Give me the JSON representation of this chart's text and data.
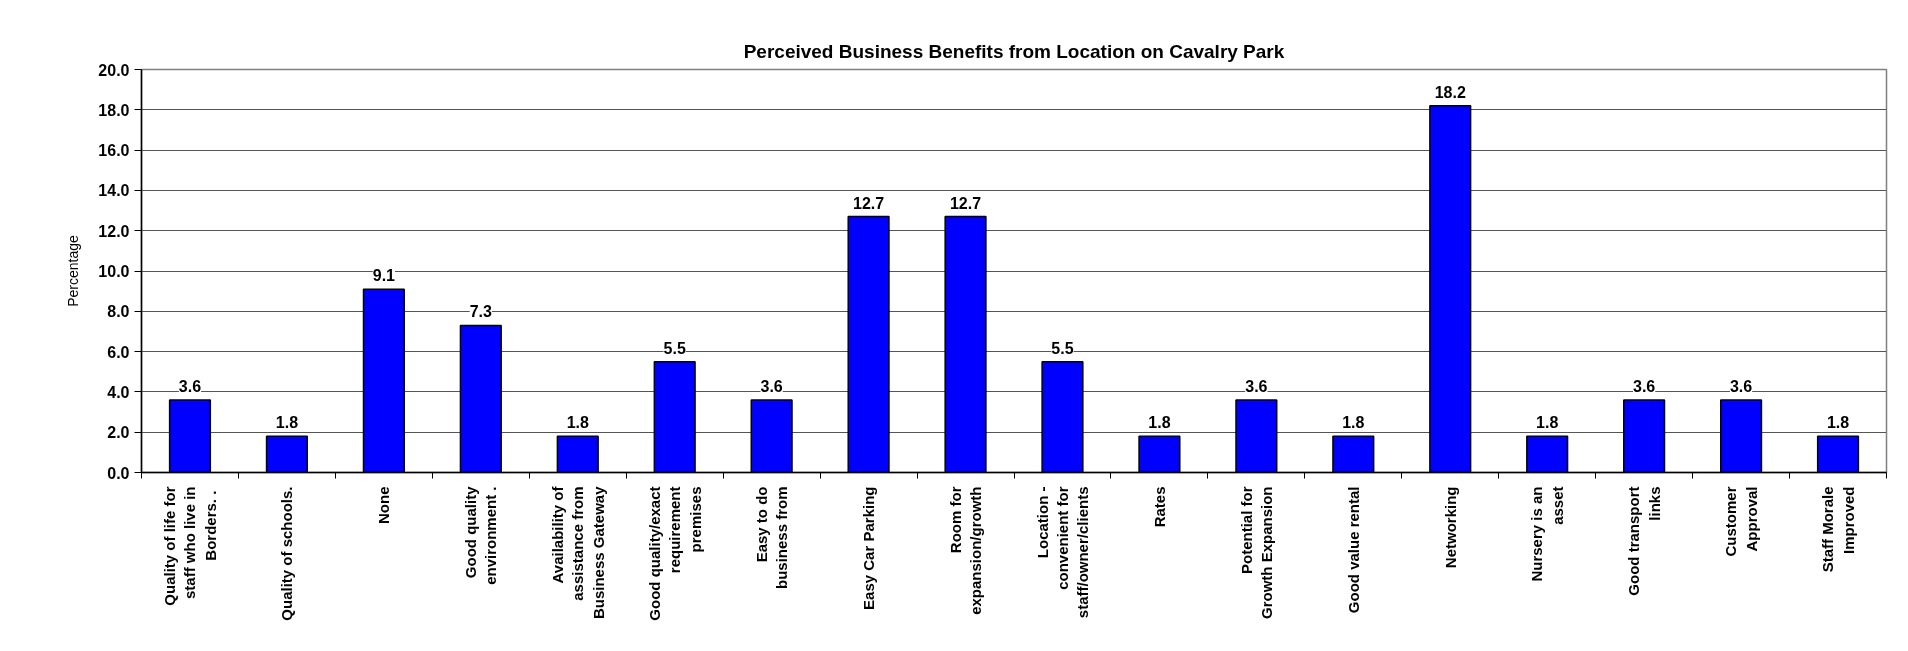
{
  "chart_data": {
    "type": "bar",
    "title": "Perceived Business Benefits from Location on Cavalry Park",
    "ylabel": "Percentage",
    "categories": [
      "Quality of life for\nstaff who live in\nBorders.  .",
      "Quality of schools.",
      "None",
      "Good quality\nenvironment .",
      "Availability of\nassistance from\nBusiness Gateway",
      "Good quality/exact\nrequirement\npremises",
      "Easy to do\nbusiness from",
      "Easy Car Parking",
      "Room for\nexpansion/growth",
      "Location -\nconvenient for\nstaff/owner/clients",
      "Rates",
      "Potential for\nGrowth Expansion",
      "Good value rental",
      "Networking",
      "Nursery is an\nasset",
      "Good transport\nlinks",
      "Customer\nApproval",
      "Staff Morale\nImproved"
    ],
    "values": [
      3.6,
      1.8,
      9.1,
      7.3,
      1.8,
      5.5,
      3.6,
      12.7,
      12.7,
      5.5,
      1.8,
      3.6,
      1.8,
      18.2,
      1.8,
      3.6,
      3.6,
      1.8
    ],
    "color": "#0000ff",
    "ylim": [
      0,
      20
    ],
    "yticks": [
      {
        "value": 0,
        "label": "0.0"
      },
      {
        "value": 2,
        "label": "2.0"
      },
      {
        "value": 4,
        "label": "4.0"
      },
      {
        "value": 6,
        "label": "6.0"
      },
      {
        "value": 8,
        "label": "8.0"
      },
      {
        "value": 10,
        "label": "10.0"
      },
      {
        "value": 12,
        "label": "12.0"
      },
      {
        "value": 14,
        "label": "14.0"
      },
      {
        "value": 16,
        "label": "16.0"
      },
      {
        "value": 18,
        "label": "18.0"
      },
      {
        "value": 20,
        "label": "20.0"
      }
    ],
    "grid": "y",
    "data_labels": true
  }
}
